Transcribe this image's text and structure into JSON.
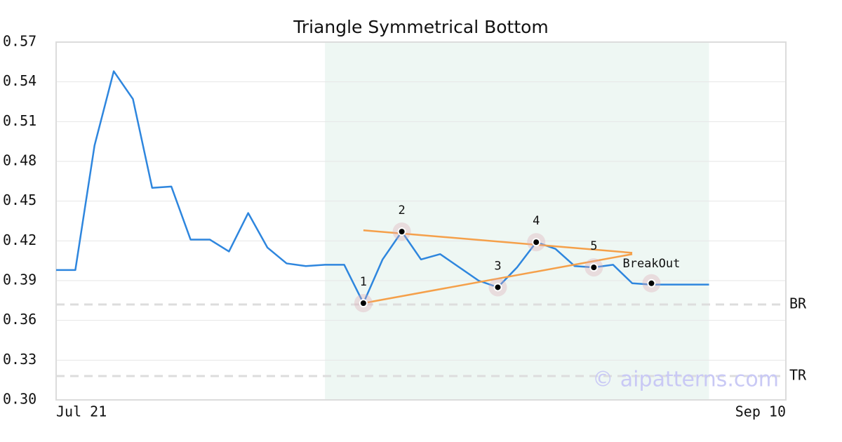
{
  "chart_data": {
    "type": "line",
    "title": "Triangle Symmetrical Bottom",
    "categories": [
      "Jul 21",
      null,
      null,
      null,
      null,
      null,
      null,
      null,
      null,
      null,
      null,
      null,
      null,
      null,
      null,
      null,
      null,
      null,
      null,
      null,
      null,
      null,
      null,
      null,
      null,
      null,
      null,
      null,
      null,
      null,
      null,
      null,
      null,
      null,
      null,
      null,
      null,
      null,
      "Sep 10"
    ],
    "values": [
      0.398,
      0.398,
      0.492,
      0.548,
      0.527,
      0.46,
      0.461,
      0.421,
      0.421,
      0.412,
      0.441,
      0.415,
      0.403,
      0.401,
      0.402,
      0.402,
      0.373,
      0.406,
      0.427,
      0.406,
      0.41,
      0.4,
      0.39,
      0.385,
      0.4,
      0.419,
      0.414,
      0.401,
      0.4,
      0.402,
      0.388,
      0.387,
      0.387,
      0.387,
      0.387,
      null,
      null,
      null,
      null
    ],
    "color": "#2e86de",
    "ylim": [
      0.3,
      0.57
    ],
    "yticks": [
      {
        "value": 0.3,
        "label": "0.30"
      },
      0.33,
      0.36,
      0.39,
      0.42,
      0.45,
      0.48,
      0.51,
      0.54,
      0.57
    ],
    "grid": true,
    "highlight": {
      "x": [
        14,
        34
      ],
      "color": "#eef7f3"
    },
    "pattern_points": {
      "labels": [
        "1",
        "2",
        "3",
        "4",
        "5",
        "BreakOut"
      ],
      "x": [
        16,
        18,
        23,
        25,
        28,
        31
      ],
      "values": [
        0.373,
        0.427,
        0.385,
        0.419,
        0.4,
        0.388
      ]
    },
    "trendlines": [
      {
        "x": [
          16,
          30
        ],
        "values": [
          0.428,
          0.411
        ],
        "color": "#f5a04a"
      },
      {
        "x": [
          16,
          30
        ],
        "values": [
          0.373,
          0.41
        ],
        "color": "#f5a04a"
      }
    ],
    "reference_lines": [
      {
        "label": "BR",
        "value": 0.372
      },
      {
        "label": "TR",
        "value": 0.318
      }
    ],
    "watermark": "© aipatterns.com"
  }
}
